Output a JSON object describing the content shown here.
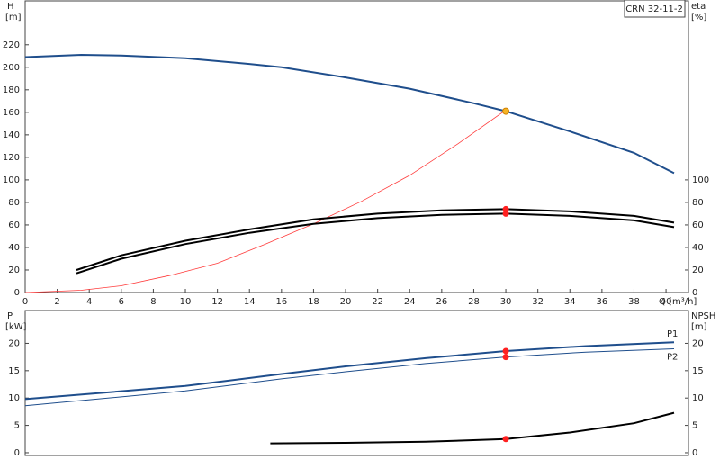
{
  "chart_data": [
    {
      "type": "line",
      "annotation": "CRN 32-11-2",
      "ylabel": "H",
      "yunit": "[m]",
      "y2label": "eta",
      "y2unit": "[%]",
      "xlabel": "Q [m³/h]",
      "xlim": [
        0,
        41.4
      ],
      "xticks": [
        0,
        2,
        4,
        6,
        8,
        10,
        12,
        14,
        16,
        18,
        20,
        22,
        24,
        26,
        28,
        30,
        32,
        34,
        36,
        38,
        40
      ],
      "ylim": [
        0,
        259
      ],
      "yticks": [
        0,
        20,
        40,
        60,
        80,
        100,
        120,
        140,
        160,
        180,
        200,
        220
      ],
      "y2lim": [
        0,
        259
      ],
      "y2ticks": [
        0,
        20,
        40,
        60,
        80,
        100
      ],
      "series": [
        {
          "color": "#1f4e8c",
          "width": 2,
          "x": [
            0,
            3.5,
            6,
            10,
            14,
            16,
            20,
            24,
            28,
            30,
            34,
            38,
            40.5
          ],
          "values": [
            209,
            211,
            210.5,
            208,
            203,
            200,
            191,
            181,
            168,
            161,
            143,
            124,
            106
          ]
        },
        {
          "color": "#ff3b3b",
          "width": 0.8,
          "x": [
            0,
            3.5,
            6,
            9,
            12,
            15,
            18,
            21,
            24,
            27,
            30
          ],
          "values": [
            0,
            2,
            6,
            15,
            26,
            43,
            61,
            81,
            104,
            132,
            162
          ]
        },
        {
          "color": "#000000",
          "width": 2,
          "axis": "y2",
          "x": [
            3.2,
            6,
            10,
            14,
            18,
            22,
            26,
            30,
            34,
            38,
            40.5
          ],
          "values": [
            20,
            33,
            46,
            56,
            65,
            70,
            73,
            74,
            72,
            68,
            62
          ]
        },
        {
          "color": "#000000",
          "width": 2,
          "axis": "y2",
          "x": [
            3.2,
            6,
            10,
            14,
            18,
            22,
            26,
            30,
            34,
            38,
            40.5
          ],
          "values": [
            17,
            30,
            43,
            53,
            61,
            66,
            69,
            70,
            68,
            64,
            58
          ]
        }
      ],
      "points": [
        {
          "x": 30,
          "y": 161,
          "color": "#f5b324"
        },
        {
          "x": 30,
          "y": 74,
          "color": "#ff2020",
          "axis": "y2"
        },
        {
          "x": 30,
          "y": 70,
          "color": "#ff2020",
          "axis": "y2"
        }
      ]
    },
    {
      "type": "line",
      "ylabel": "P",
      "yunit": "[kW]",
      "y2label": "NPSH",
      "y2unit": "[m]",
      "xlim": [
        0,
        41.4
      ],
      "ylim": [
        -0.5,
        26
      ],
      "yticks": [
        0,
        5,
        10,
        15,
        20
      ],
      "y2lim": [
        -0.5,
        26
      ],
      "y2ticks": [
        0,
        5,
        10,
        15,
        20
      ],
      "series": [
        {
          "name": "P1",
          "color": "#1f4e8c",
          "width": 2,
          "x": [
            0,
            10,
            16,
            20,
            25,
            30,
            35,
            40.5
          ],
          "values": [
            9.8,
            12.2,
            14.4,
            15.8,
            17.3,
            18.6,
            19.5,
            20.2
          ]
        },
        {
          "name": "P2",
          "color": "#1f4e8c",
          "width": 1,
          "x": [
            0,
            10,
            16,
            20,
            25,
            30,
            35,
            40.5
          ],
          "values": [
            8.6,
            11.3,
            13.5,
            14.8,
            16.3,
            17.5,
            18.4,
            19.0
          ]
        },
        {
          "color": "#000000",
          "width": 2,
          "axis": "y2",
          "x": [
            15.3,
            20,
            25,
            30,
            34,
            38,
            40.5
          ],
          "values": [
            1.7,
            1.8,
            2.0,
            2.5,
            3.7,
            5.4,
            7.3
          ]
        }
      ],
      "points": [
        {
          "x": 30,
          "y": 18.6,
          "color": "#ff2020"
        },
        {
          "x": 30,
          "y": 17.5,
          "color": "#ff2020"
        },
        {
          "x": 30,
          "y": 2.5,
          "color": "#ff2020",
          "axis": "y2"
        }
      ]
    }
  ]
}
